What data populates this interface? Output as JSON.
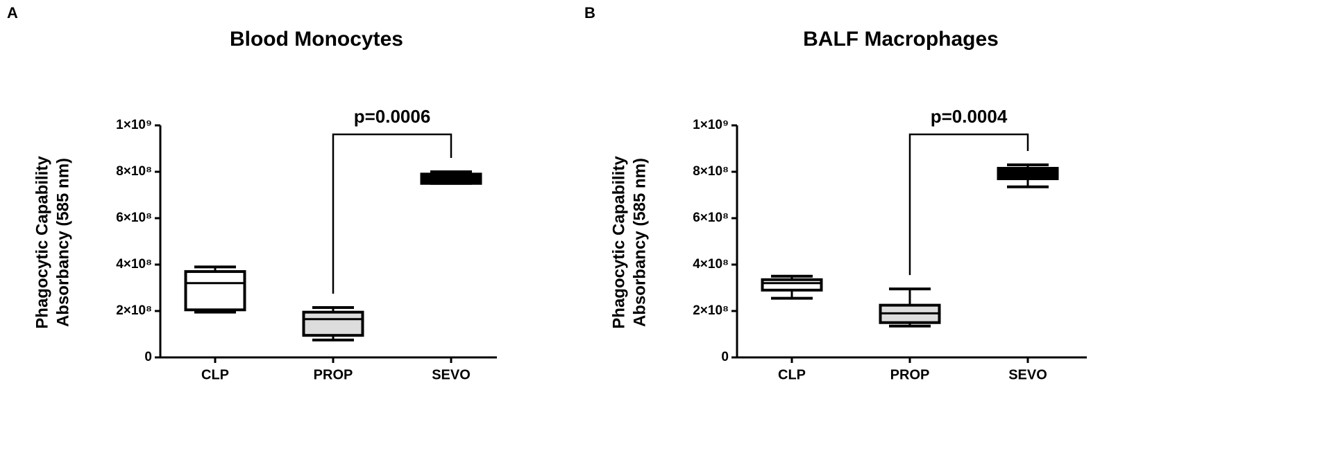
{
  "chart_data": [
    {
      "type": "box",
      "panel": "A",
      "title": "Blood Monocytes",
      "ylabel": [
        "Phagocytic Capability",
        "Absorbancy (585 nm)"
      ],
      "categories": [
        "CLP",
        "PROP",
        "SEVO"
      ],
      "min": [
        195000000,
        75000000,
        750000000
      ],
      "q1": [
        205000000,
        95000000,
        750000000
      ],
      "median": [
        320000000,
        165000000,
        770000000
      ],
      "q3": [
        370000000,
        195000000,
        790000000
      ],
      "max": [
        390000000,
        215000000,
        800000000
      ],
      "colors": [
        "#ffffff",
        "#dddddd",
        "#000000"
      ],
      "ylim": [
        0,
        1000000000
      ],
      "yticks": [
        0,
        {
          "value": 200000000,
          "label": "2×10⁸"
        },
        {
          "value": 400000000,
          "label": "4×10⁸"
        },
        {
          "value": 600000000,
          "label": "6×10⁸"
        },
        {
          "value": 800000000,
          "label": "8×10⁸"
        },
        {
          "value": 1000000000,
          "label": "1×10⁹"
        }
      ],
      "annotation": "p=0.0006"
    },
    {
      "type": "box",
      "panel": "B",
      "title": "BALF Macrophages",
      "ylabel": [
        "Phagocytic Capability",
        "Absorbancy (585 nm)"
      ],
      "categories": [
        "CLP",
        "PROP",
        "SEVO"
      ],
      "min": [
        255000000,
        135000000,
        735000000
      ],
      "q1": [
        290000000,
        150000000,
        770000000
      ],
      "median": [
        320000000,
        190000000,
        800000000
      ],
      "q3": [
        335000000,
        225000000,
        815000000
      ],
      "max": [
        350000000,
        295000000,
        830000000
      ],
      "colors": [
        "#ffffff",
        "#dddddd",
        "#000000"
      ],
      "ylim": [
        0,
        1000000000
      ],
      "yticks": [
        0,
        {
          "value": 200000000,
          "label": "2×10⁸"
        },
        {
          "value": 400000000,
          "label": "4×10⁸"
        },
        {
          "value": 600000000,
          "label": "6×10⁸"
        },
        {
          "value": 800000000,
          "label": "8×10⁸"
        },
        {
          "value": 1000000000,
          "label": "1×10⁹"
        }
      ],
      "annotation": "p=0.0004"
    }
  ]
}
